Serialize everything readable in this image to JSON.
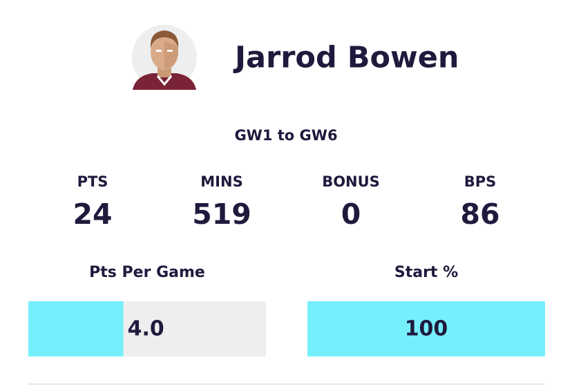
{
  "player": {
    "name": "Jarrod Bowen"
  },
  "period": "GW1 to GW6",
  "stats": [
    {
      "label": "PTS",
      "value": 24
    },
    {
      "label": "MINS",
      "value": 519
    },
    {
      "label": "BONUS",
      "value": 0
    },
    {
      "label": "BPS",
      "value": 86
    }
  ],
  "bars": [
    {
      "label": "Pts Per Game",
      "value": 4,
      "value_label": "4.0",
      "xlim": [
        0,
        10
      ]
    },
    {
      "label": "Start %",
      "value": 100,
      "xlim": [
        0,
        100
      ]
    }
  ]
}
